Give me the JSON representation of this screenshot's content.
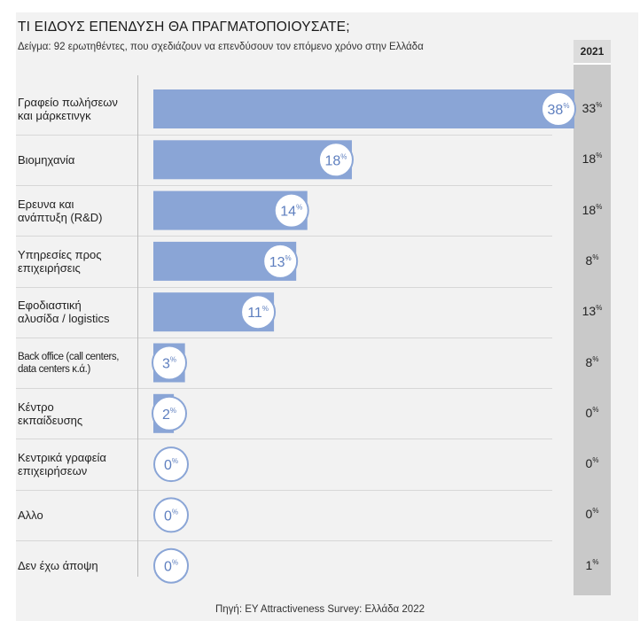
{
  "chart_data": {
    "type": "bar",
    "orientation": "horizontal",
    "title": "ΤΙ ΕΙΔΟΥΣ ΕΠΕΝΔΥΣΗ ΘΑ ΠΡΑΓΜΑΤΟΠΟΙΟΥΣΑΤΕ;",
    "subtitle": "Δείγμα: 92 ερωτηθέντες, που σχεδιάζουν να επενδύσουν τον επόμενο χρόνο στην Ελλάδα",
    "categories": [
      [
        "Γραφείο πωλήσεων",
        "και μάρκετινγκ"
      ],
      [
        "Βιομηχανία"
      ],
      [
        "Ερευνα και",
        "ανάπτυξη (R&D)"
      ],
      [
        "Υπηρεσίες προς",
        "επιχειρήσεις"
      ],
      [
        "Εφοδιαστική",
        "αλυσίδα / logistics"
      ],
      [
        "Back office (call centers,",
        "data centers κ.ά.)"
      ],
      [
        "Κέντρο",
        "εκπαίδευσης"
      ],
      [
        "Κεντρικά γραφεία",
        "επιχειρήσεων"
      ],
      [
        "Αλλο"
      ],
      [
        "Δεν έχω άποψη"
      ]
    ],
    "series": [
      {
        "values": [
          38,
          18,
          14,
          13,
          11,
          3,
          2,
          0,
          0,
          0
        ]
      },
      {
        "name": "2021",
        "values": [
          33,
          18,
          18,
          8,
          13,
          8,
          0,
          0,
          0,
          1
        ]
      }
    ],
    "unit_label": "%",
    "xlim": [
      0,
      40
    ],
    "bar_color": "#8aa5d6",
    "bubble_text_color": "#5e7fbf",
    "column_2021_bg": "#c9c9c9",
    "source": "Πηγή: EY Attractiveness Survey: Ελλάδα 2022"
  }
}
